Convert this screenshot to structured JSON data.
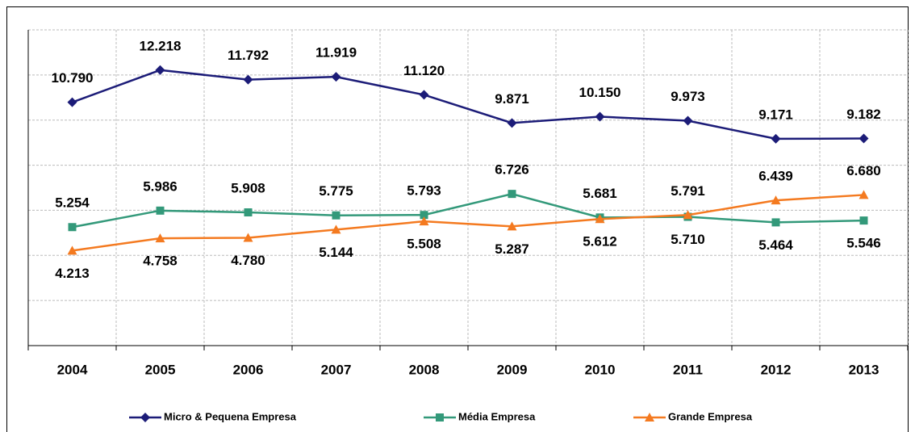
{
  "chart_data": {
    "type": "line",
    "categories": [
      "2004",
      "2005",
      "2006",
      "2007",
      "2008",
      "2009",
      "2010",
      "2011",
      "2012",
      "2013"
    ],
    "ylim": [
      0,
      14000
    ],
    "yticks": [
      0,
      2000,
      4000,
      6000,
      8000,
      10000,
      12000,
      14000
    ],
    "grid": true,
    "legend": "bottom",
    "series": [
      {
        "name": "Micro & Pequena Empresa",
        "color": "#1c1c78",
        "marker": "diamond",
        "values": [
          10790,
          12218,
          11792,
          11919,
          11120,
          9871,
          10150,
          9973,
          9171,
          9182
        ],
        "value_labels": [
          "10.790",
          "12.218",
          "11.792",
          "11.919",
          "11.120",
          "9.871",
          "10.150",
          "9.973",
          "9.171",
          "9.182"
        ]
      },
      {
        "name": "Média Empresa",
        "color": "#33997a",
        "marker": "square",
        "values": [
          5254,
          5986,
          5908,
          5775,
          5793,
          6726,
          5681,
          5710,
          5464,
          5546
        ],
        "value_labels": [
          "5.254",
          "5.986",
          "5.908",
          "5.775",
          "5.793",
          "6.726",
          "5.681",
          "5.710",
          "5.464",
          "5.546"
        ]
      },
      {
        "name": "Grande Empresa",
        "color": "#f47a20",
        "marker": "triangle",
        "values": [
          4213,
          4758,
          4780,
          5144,
          5508,
          5287,
          5612,
          5791,
          6439,
          6680
        ],
        "value_labels": [
          "4.213",
          "4.758",
          "4.780",
          "5.144",
          "5.508",
          "5.287",
          "5.612",
          "5.791",
          "6.439",
          "6.680"
        ]
      }
    ]
  }
}
